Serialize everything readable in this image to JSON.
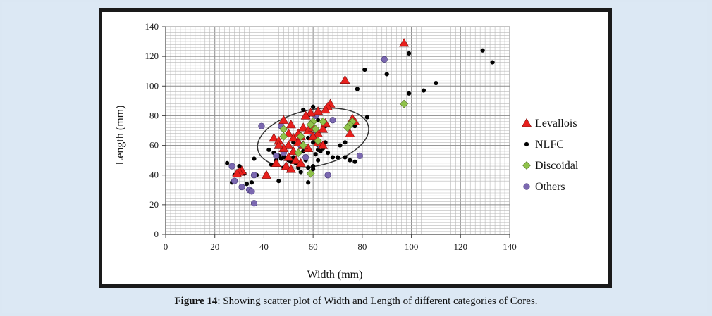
{
  "figure": {
    "caption_label": "Figure 14",
    "caption_text": ": Showing scatter plot of Width and Length of different categories of Cores."
  },
  "colors": {
    "Levallois": "#e8201d",
    "NLFC": "#000000",
    "Discoidal": "#8fc24a",
    "Others": "#7b68b0"
  },
  "chart_data": {
    "type": "scatter",
    "xlabel": "Width (mm)",
    "ylabel": "Length (mm)",
    "xlim": [
      0,
      140
    ],
    "ylim": [
      0,
      140
    ],
    "xticks": [
      0,
      20,
      40,
      60,
      80,
      100,
      120,
      140
    ],
    "yticks": [
      0,
      20,
      40,
      60,
      80,
      100,
      120,
      140
    ],
    "minor_grid_step": 2,
    "grid": true,
    "legend_position": "right",
    "annotations": [
      {
        "type": "ellipse",
        "center": [
          60,
          65
        ],
        "radii": [
          23,
          19
        ],
        "rotation_deg": -12
      }
    ],
    "series": [
      {
        "name": "Levallois",
        "marker": "triangle",
        "points": [
          [
            97,
            129
          ],
          [
            73,
            104
          ],
          [
            76,
            78
          ],
          [
            77,
            76
          ],
          [
            75,
            68
          ],
          [
            67,
            88
          ],
          [
            66,
            86
          ],
          [
            65,
            84
          ],
          [
            62,
            83
          ],
          [
            59,
            82
          ],
          [
            57,
            80
          ],
          [
            48,
            77
          ],
          [
            51,
            74
          ],
          [
            44,
            65
          ],
          [
            46,
            63
          ],
          [
            50,
            68
          ],
          [
            52,
            65
          ],
          [
            54,
            68
          ],
          [
            56,
            72
          ],
          [
            58,
            70
          ],
          [
            60,
            72
          ],
          [
            62,
            68
          ],
          [
            64,
            71
          ],
          [
            65,
            75
          ],
          [
            60,
            66
          ],
          [
            62,
            62
          ],
          [
            64,
            60
          ],
          [
            58,
            58
          ],
          [
            56,
            60
          ],
          [
            54,
            62
          ],
          [
            50,
            60
          ],
          [
            52,
            56
          ],
          [
            48,
            58
          ],
          [
            50,
            52
          ],
          [
            53,
            50
          ],
          [
            55,
            48
          ],
          [
            49,
            46
          ],
          [
            51,
            44
          ],
          [
            45,
            48
          ],
          [
            41,
            40
          ],
          [
            31,
            43
          ],
          [
            30,
            42
          ],
          [
            29,
            41
          ],
          [
            46,
            60
          ],
          [
            55,
            66
          ]
        ]
      },
      {
        "name": "NLFC",
        "marker": "circle",
        "points": [
          [
            129,
            124
          ],
          [
            133,
            116
          ],
          [
            99,
            122
          ],
          [
            90,
            108
          ],
          [
            81,
            111
          ],
          [
            78,
            98
          ],
          [
            99,
            95
          ],
          [
            105,
            97
          ],
          [
            110,
            102
          ],
          [
            82,
            79
          ],
          [
            77,
            73
          ],
          [
            74,
            72
          ],
          [
            73,
            62
          ],
          [
            71,
            60
          ],
          [
            70,
            52
          ],
          [
            73,
            52
          ],
          [
            75,
            50
          ],
          [
            77,
            49
          ],
          [
            68,
            52
          ],
          [
            66,
            55
          ],
          [
            64,
            58
          ],
          [
            62,
            60
          ],
          [
            60,
            62
          ],
          [
            58,
            58
          ],
          [
            56,
            56
          ],
          [
            54,
            54
          ],
          [
            52,
            52
          ],
          [
            50,
            50
          ],
          [
            48,
            52
          ],
          [
            46,
            53
          ],
          [
            44,
            55
          ],
          [
            42,
            57
          ],
          [
            45,
            47
          ],
          [
            48,
            45
          ],
          [
            50,
            44
          ],
          [
            54,
            45
          ],
          [
            58,
            45
          ],
          [
            60,
            46
          ],
          [
            62,
            50
          ],
          [
            46,
            36
          ],
          [
            36,
            51
          ],
          [
            35,
            35
          ],
          [
            34,
            30
          ],
          [
            33,
            34
          ],
          [
            27,
            35
          ],
          [
            25,
            48
          ],
          [
            28,
            40
          ],
          [
            30,
            46
          ],
          [
            58,
            35
          ],
          [
            60,
            44
          ],
          [
            55,
            42
          ],
          [
            57,
            50
          ],
          [
            61,
            54
          ],
          [
            63,
            56
          ],
          [
            65,
            62
          ],
          [
            60,
            86
          ],
          [
            56,
            84
          ],
          [
            58,
            80
          ],
          [
            62,
            77
          ],
          [
            65,
            73
          ],
          [
            45,
            50
          ],
          [
            47,
            51
          ],
          [
            51,
            49
          ],
          [
            53,
            48
          ],
          [
            32,
            41
          ],
          [
            37,
            40
          ],
          [
            43,
            47
          ],
          [
            52,
            62
          ],
          [
            58,
            65
          ],
          [
            62,
            57
          ]
        ]
      },
      {
        "name": "Discoidal",
        "marker": "diamond",
        "points": [
          [
            97,
            88
          ],
          [
            76,
            76
          ],
          [
            75,
            74
          ],
          [
            74,
            72
          ],
          [
            64,
            76
          ],
          [
            60,
            76
          ],
          [
            59,
            74
          ],
          [
            61,
            71
          ],
          [
            48,
            71
          ],
          [
            48,
            66
          ],
          [
            55,
            66
          ],
          [
            56,
            60
          ],
          [
            54,
            55
          ],
          [
            59,
            41
          ],
          [
            62,
            63
          ]
        ]
      },
      {
        "name": "Others",
        "marker": "circle",
        "points": [
          [
            89,
            118
          ],
          [
            39,
            73
          ],
          [
            47,
            73
          ],
          [
            68,
            77
          ],
          [
            60,
            67
          ],
          [
            55,
            60
          ],
          [
            63,
            60
          ],
          [
            48,
            55
          ],
          [
            45,
            53
          ],
          [
            79,
            53
          ],
          [
            66,
            40
          ],
          [
            36,
            40
          ],
          [
            31,
            32
          ],
          [
            34,
            30
          ],
          [
            35,
            29
          ],
          [
            28,
            36
          ],
          [
            27,
            46
          ],
          [
            36,
            21
          ],
          [
            61,
            80
          ],
          [
            57,
            52
          ]
        ]
      }
    ]
  }
}
